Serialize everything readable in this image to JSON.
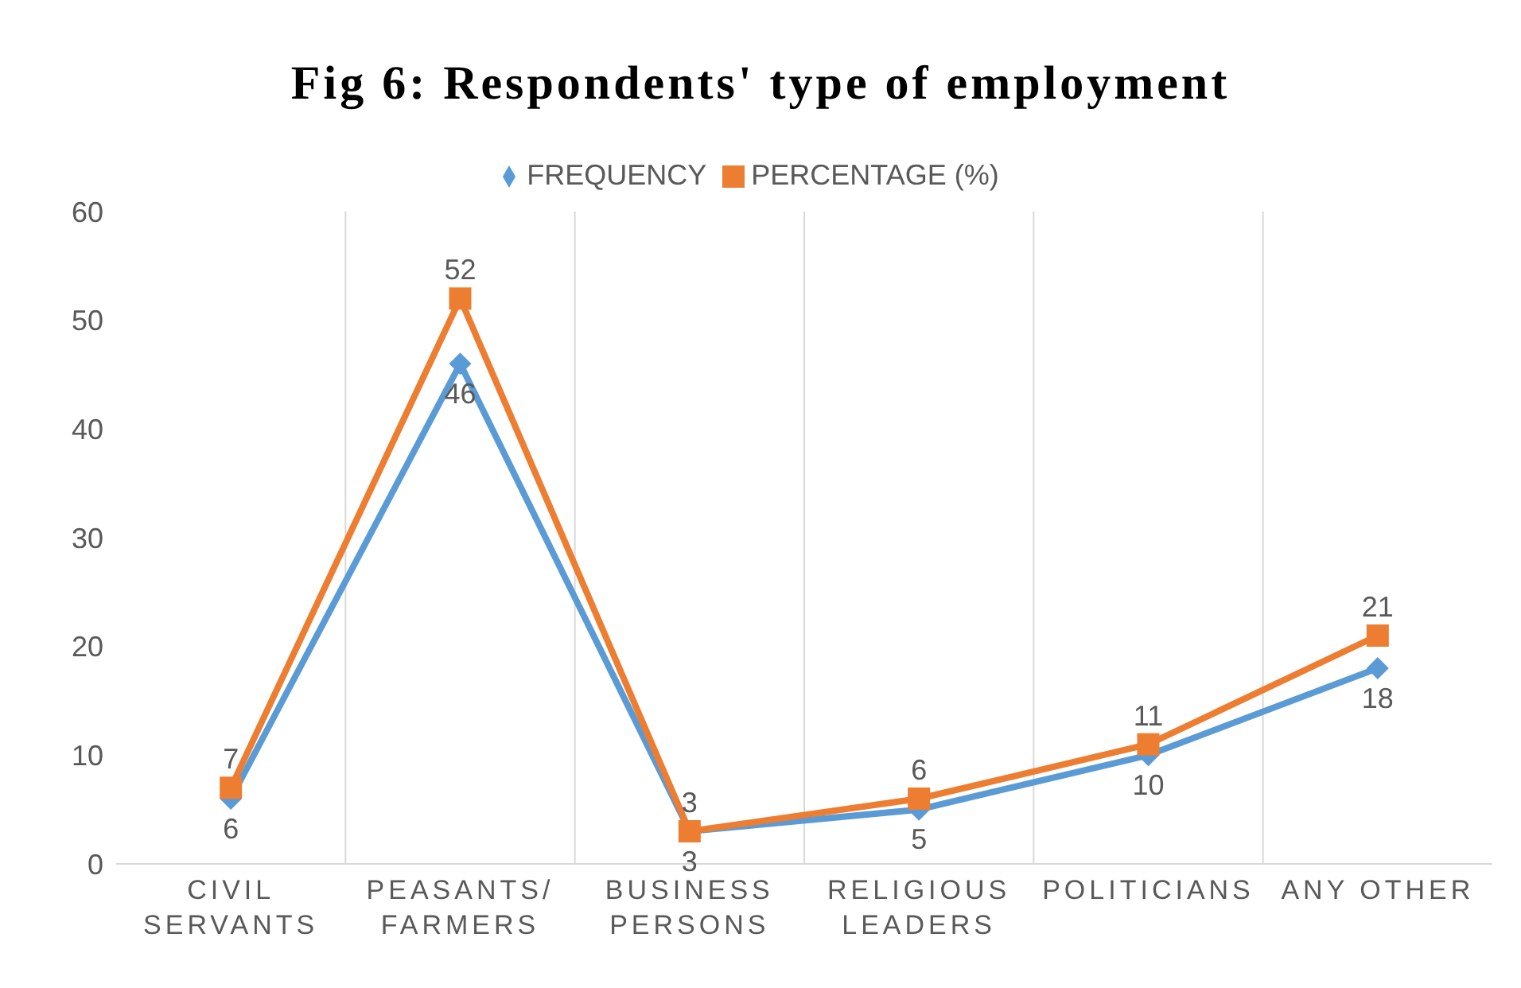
{
  "chart_data": {
    "type": "line",
    "title": "Fig 6: Respondents' type of employment",
    "categories": [
      "CIVIL SERVANTS",
      "PEASANTS/ FARMERS",
      "BUSINESS PERSONS",
      "RELIGIOUS LEADERS",
      "POLITICIANS",
      "ANY OTHER"
    ],
    "series": [
      {
        "name": "FREQUENCY",
        "color": "#5b9bd5",
        "marker": "diamond",
        "values": [
          6,
          46,
          3,
          5,
          10,
          18
        ]
      },
      {
        "name": "PERCENTAGE (%)",
        "color": "#ed7d31",
        "marker": "square",
        "values": [
          7,
          52,
          3,
          6,
          11,
          21
        ]
      }
    ],
    "ylim": [
      0,
      60
    ],
    "yticks": [
      0,
      10,
      20,
      30,
      40,
      50,
      60
    ],
    "grid": "x",
    "legend": "top",
    "data_labels": true
  }
}
